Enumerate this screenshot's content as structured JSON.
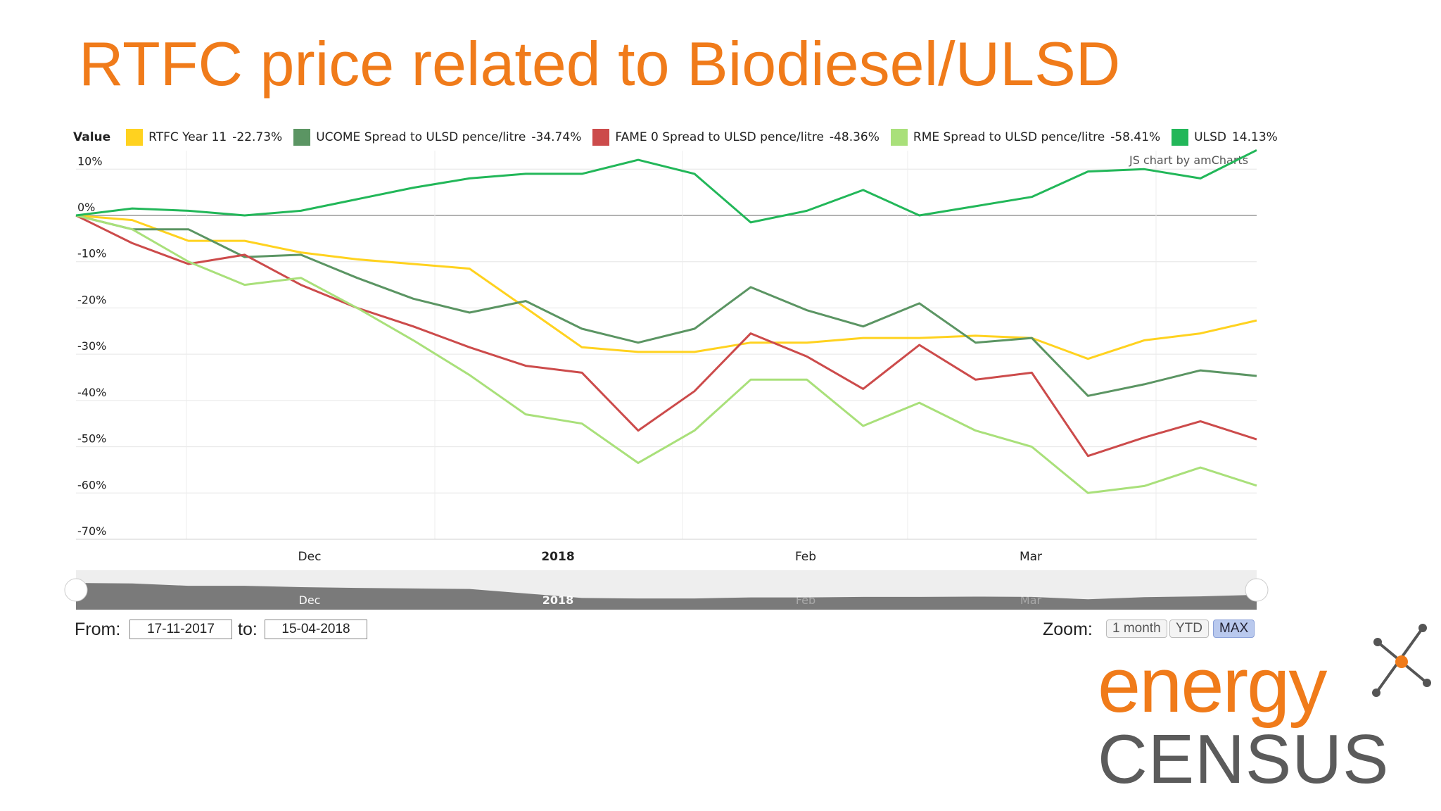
{
  "page": {
    "title": "RTFC price related to Biodiesel/ULSD"
  },
  "chart_data": {
    "type": "line",
    "legend_title": "Value",
    "credit": "JS chart by amCharts",
    "y_unit": "%",
    "ylim": [
      -70,
      14
    ],
    "y_ticks": [
      10,
      0,
      -10,
      -20,
      -30,
      -40,
      -50,
      -60,
      -70
    ],
    "y_tick_labels": [
      "10%",
      "0%",
      "-10%",
      "-20%",
      "-30%",
      "-40%",
      "-50%",
      "-60%",
      "-70%"
    ],
    "x_range": [
      "2017-11-17",
      "2018-04-15"
    ],
    "x_tick_labels": [
      {
        "label": "Dec",
        "date": "2017-12-01",
        "bold": false
      },
      {
        "label": "2018",
        "date": "2018-01-01",
        "bold": true
      },
      {
        "label": "Feb",
        "date": "2018-02-01",
        "bold": false
      },
      {
        "label": "Mar",
        "date": "2018-03-01",
        "bold": false
      }
    ],
    "x": [
      "2017-11-17",
      "2017-11-24",
      "2017-12-01",
      "2017-12-08",
      "2017-12-15",
      "2017-12-22",
      "2017-12-29",
      "2018-01-05",
      "2018-01-12",
      "2018-01-19",
      "2018-01-26",
      "2018-02-02",
      "2018-02-09",
      "2018-02-16",
      "2018-02-23",
      "2018-03-02",
      "2018-03-09",
      "2018-03-16",
      "2018-03-23",
      "2018-03-30",
      "2018-04-06",
      "2018-04-13"
    ],
    "series": [
      {
        "name": "RTFC Year 11",
        "change_label": "-22.73%",
        "color": "#FFD21F",
        "values": [
          0,
          -1,
          -5.5,
          -5.5,
          -8,
          -9.5,
          -10.5,
          -11.5,
          -20,
          -28.5,
          -29.5,
          -29.5,
          -27.5,
          -27.5,
          -26.5,
          -26.5,
          -26,
          -26.5,
          -31,
          -27,
          -25.5,
          -22.7
        ]
      },
      {
        "name": "UCOME Spread to ULSD pence/litre",
        "change_label": "-34.74%",
        "color": "#5B9563",
        "values": [
          0,
          -3,
          -3,
          -9,
          -8.5,
          -13.5,
          -18,
          -21,
          -18.5,
          -24.5,
          -27.5,
          -24.5,
          -15.5,
          -20.5,
          -24,
          -19,
          -27.5,
          -26.5,
          -39,
          -36.5,
          -33.5,
          -34.7
        ]
      },
      {
        "name": "FAME 0 Spread to ULSD pence/litre",
        "change_label": "-48.36%",
        "color": "#CC4B4B",
        "values": [
          0,
          -6,
          -10.5,
          -8.5,
          -15,
          -20,
          -24,
          -28.5,
          -32.5,
          -34,
          -46.5,
          -38,
          -25.5,
          -30.5,
          -37.5,
          -28,
          -35.5,
          -34,
          -52,
          -48,
          -44.5,
          -48.4
        ]
      },
      {
        "name": "RME Spread to ULSD pence/litre",
        "change_label": "-58.41%",
        "color": "#A9E07A",
        "values": [
          0,
          -3,
          -10,
          -15,
          -13.5,
          -20,
          -27,
          -34.5,
          -43,
          -45,
          -53.5,
          -46.5,
          -35.5,
          -35.5,
          -45.5,
          -40.5,
          -46.5,
          -50,
          -60,
          -58.5,
          -54.5,
          -58.4
        ]
      },
      {
        "name": "ULSD",
        "change_label": "14.13%",
        "color": "#22B759",
        "values": [
          0,
          1.5,
          1,
          0,
          1,
          3.5,
          6,
          8,
          9,
          9,
          12,
          9,
          -1.5,
          1,
          5.5,
          0,
          2,
          4,
          9.5,
          10,
          8,
          14.1
        ]
      }
    ]
  },
  "range_selector": {
    "from_label": "From:",
    "from_value": "17-11-2017",
    "to_label": "to:",
    "to_value": "15-04-2018",
    "zoom_label": "Zoom:",
    "zoom_buttons": [
      "1 month",
      "YTD",
      "MAX"
    ],
    "zoom_selected": "MAX",
    "scrollbar_labels": [
      "Dec",
      "2018",
      "Feb",
      "Mar"
    ]
  },
  "logo": {
    "line1": "energy",
    "line2": "CENSUS",
    "colors": {
      "line1": "#F07B1A",
      "line2": "#5b5b5b"
    }
  }
}
